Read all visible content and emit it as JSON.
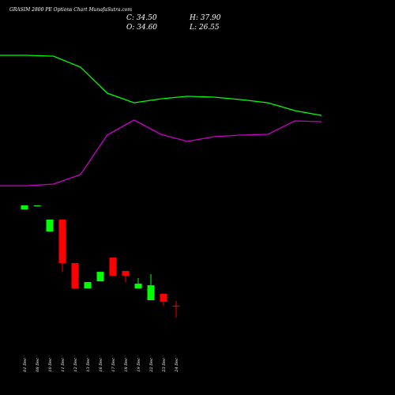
{
  "chart_data": [
    {
      "type": "line",
      "ylim": [
        0,
        100
      ],
      "series": [
        {
          "color": "#00ff00",
          "values": [
            85.7,
            85.7,
            85.2,
            78.6,
            62.9,
            57.1,
            59.5,
            61.0,
            60.5,
            59.0,
            57.1,
            52.4,
            49.5
          ]
        },
        {
          "color": "#cc00cc",
          "values": [
            7.1,
            7.1,
            8.1,
            13.8,
            37.6,
            46.7,
            38.1,
            33.8,
            36.7,
            37.6,
            38.1,
            46.2,
            45.7
          ]
        }
      ]
    },
    {
      "type": "candlestick",
      "title": "GRASIM 2800 PE Options Chart MunafaSutra.com",
      "info": [
        "C: 34.50",
        "H: 37.90",
        "O: 34.60",
        "L: 26.55"
      ],
      "categories": [
        "01 Dec",
        "08 Dec",
        "10 Dec",
        "11 Dec",
        "12 Dec",
        "13 Dec",
        "16 Dec",
        "17 Dec",
        "18 Dec",
        "19 Dec",
        "22 Dec",
        "23 Dec",
        "24 Dec"
      ],
      "open": [
        100.4,
        102.6,
        85.3,
        93.4,
        63.7,
        46.4,
        51.2,
        67.4,
        58.3,
        46.4,
        38.3,
        42.6,
        34.6
      ],
      "high": [
        103.1,
        103.1,
        93.4,
        93.4,
        63.7,
        50.7,
        57.7,
        67.4,
        58.3,
        53.4,
        56.1,
        42.6,
        37.9
      ],
      "low": [
        100.4,
        102.6,
        85.3,
        57.7,
        46.4,
        46.4,
        51.2,
        55.0,
        50.7,
        46.4,
        38.3,
        34.5,
        26.55
      ],
      "close": [
        103.1,
        103.1,
        93.4,
        63.7,
        46.4,
        50.7,
        57.7,
        55.0,
        55.0,
        49.6,
        48.5,
        37.2,
        34.5
      ],
      "up_color": "#00ff00",
      "down_color": "#ff0000",
      "ylim": [
        16.7,
        108.5
      ]
    }
  ]
}
